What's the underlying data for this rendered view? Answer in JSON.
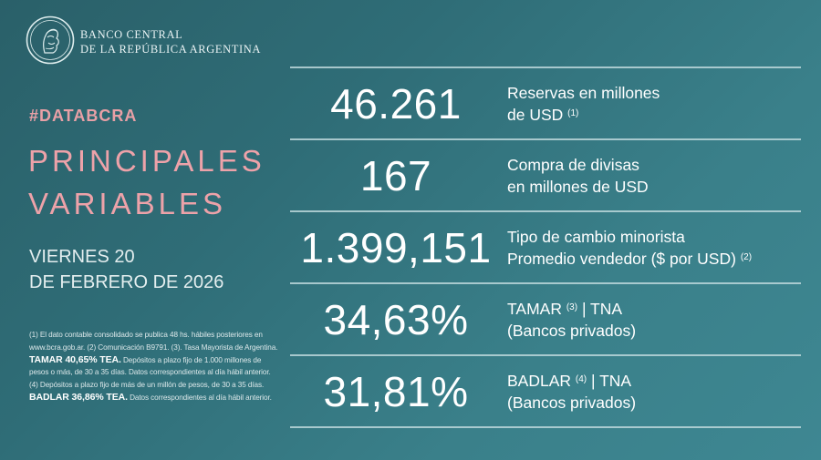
{
  "brand": {
    "name_line1": "BANCO CENTRAL",
    "name_line2": "DE LA REPÚBLICA ARGENTINA"
  },
  "hashtag": "#DATABCRA",
  "title": {
    "line1": "PRINCIPALES",
    "line2": "VARIABLES"
  },
  "date": {
    "line1": "VIERNES 20",
    "line2": "DE FEBRERO DE 2026"
  },
  "footnote": {
    "part1": "(1) El dato contable consolidado se publica 48 hs. hábiles posteriores en www.bcra.gob.ar. (2) Comunicación B9791. (3). Tasa Mayorista de Argentina.",
    "tamar_tea": "TAMAR 40,65% TEA.",
    "part2": "Depósitos a plazo fijo de 1.000 millones de pesos o más, de 30 a 35 días. Datos correspondientes al día hábil anterior. (4) Depósitos a plazo fijo de más de un millón de pesos, de 30 a 35 días.",
    "badlar_tea": "BADLAR 36,86% TEA.",
    "part3": "Datos correspondientes al día hábil anterior."
  },
  "variables": [
    {
      "value": "46.261",
      "label_line1": "Reservas en millones",
      "label_line2": "de USD",
      "note2": "(1)"
    },
    {
      "value": "167",
      "label_line1": "Compra de divisas",
      "label_line2": "en millones de USD"
    },
    {
      "value": "1.399,151",
      "label_line1": "Tipo de cambio minorista",
      "label_line2": "Promedio vendedor ($ por USD)",
      "note2": "(2)"
    },
    {
      "value": "34,63%",
      "label_line1": "TAMAR",
      "note1": "(3)",
      "label_line1b": "| TNA",
      "label_line2": "(Bancos privados)"
    },
    {
      "value": "31,81%",
      "label_line1": "BADLAR",
      "note1": "(4)",
      "label_line1b": "| TNA",
      "label_line2": "(Bancos privados)"
    }
  ],
  "colors": {
    "accent": "#eda2a9",
    "background": "#2f6d77"
  },
  "icons": {
    "seal": "bcra-seal-icon"
  }
}
